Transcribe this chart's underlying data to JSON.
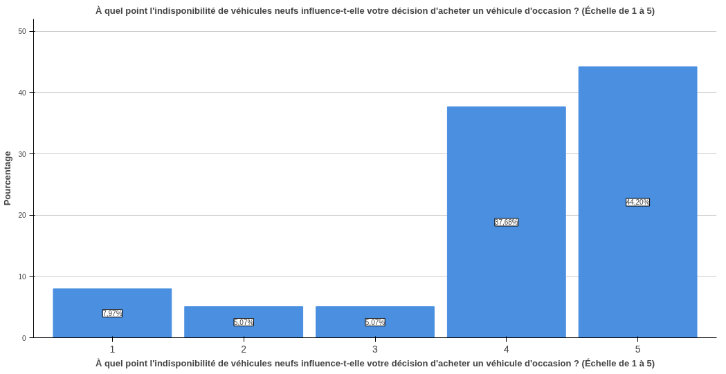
{
  "chart_data": {
    "type": "bar",
    "title": "À quel point l'indisponibilité de véhicules neufs influence-t-elle votre décision d'acheter un véhicule d'occasion ? (Échelle de 1 à 5)",
    "xlabel": "À quel point l'indisponibilité de véhicules neufs influence-t-elle votre décision d'acheter un véhicule d'occasion ? (Échelle de 1 à 5)",
    "ylabel": "Pourcentage",
    "categories": [
      "1",
      "2",
      "3",
      "4",
      "5"
    ],
    "values": [
      7.97,
      5.07,
      5.07,
      37.68,
      44.2
    ],
    "value_labels": [
      "7,97%",
      "5,07%",
      "5,07%",
      "37,68%",
      "44,20%"
    ],
    "color": "#4a8fe0",
    "ylim": [
      0,
      52
    ],
    "yticks": [
      0,
      10,
      20,
      30,
      40,
      50
    ],
    "grid": "y"
  }
}
